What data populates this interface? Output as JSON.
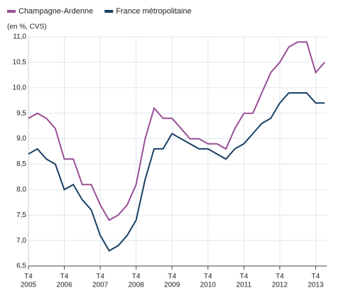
{
  "chart_data": {
    "type": "line",
    "y_label": "(en %, CVS)",
    "categories": [
      [
        "T4",
        "2005"
      ],
      null,
      null,
      null,
      [
        "T4",
        "2006"
      ],
      null,
      null,
      null,
      [
        "T4",
        "2007"
      ],
      null,
      null,
      null,
      [
        "T4",
        "2008"
      ],
      null,
      null,
      null,
      [
        "T4",
        "2009"
      ],
      null,
      null,
      null,
      [
        "T4",
        "2010"
      ],
      null,
      null,
      null,
      [
        "T4",
        "2011"
      ],
      null,
      null,
      null,
      [
        "T4",
        "2012"
      ],
      null,
      null,
      null,
      [
        "T4",
        "2013"
      ],
      null
    ],
    "series": [
      {
        "name": "Champagne-Ardenne",
        "color": "#9b4f96",
        "values": [
          9.4,
          9.5,
          9.4,
          9.2,
          8.6,
          8.6,
          8.1,
          8.1,
          7.7,
          7.4,
          7.5,
          7.7,
          8.1,
          9.0,
          9.6,
          9.4,
          9.4,
          9.2,
          9.0,
          9.0,
          8.9,
          8.9,
          8.8,
          9.2,
          9.5,
          9.5,
          9.9,
          10.3,
          10.5,
          10.8,
          10.9,
          10.9,
          10.3,
          10.5
        ]
      },
      {
        "name": "France métropolitaine",
        "color": "#1b3f63",
        "values": [
          8.7,
          8.8,
          8.6,
          8.5,
          8.0,
          8.1,
          7.8,
          7.6,
          7.1,
          6.8,
          6.9,
          7.1,
          7.4,
          8.2,
          8.8,
          8.8,
          9.1,
          9.0,
          8.9,
          8.8,
          8.8,
          8.7,
          8.6,
          8.8,
          8.9,
          9.1,
          9.3,
          9.4,
          9.7,
          9.9,
          9.9,
          9.9,
          9.7,
          9.7
        ]
      }
    ],
    "ylim": [
      6.5,
      11.0
    ],
    "yticks": [
      {
        "value": 6.5,
        "label": "6,5"
      },
      {
        "value": 7.0,
        "label": "7,0"
      },
      {
        "value": 7.5,
        "label": "7,5"
      },
      {
        "value": 8.0,
        "label": "8,0"
      },
      {
        "value": 8.5,
        "label": "8,5"
      },
      {
        "value": 9.0,
        "label": "9,0"
      },
      {
        "value": 9.5,
        "label": "9,5"
      },
      {
        "value": 10.0,
        "label": "10,0"
      },
      {
        "value": 10.5,
        "label": "10,5"
      },
      {
        "value": 11.0,
        "label": "11,0"
      }
    ],
    "grid": true
  }
}
